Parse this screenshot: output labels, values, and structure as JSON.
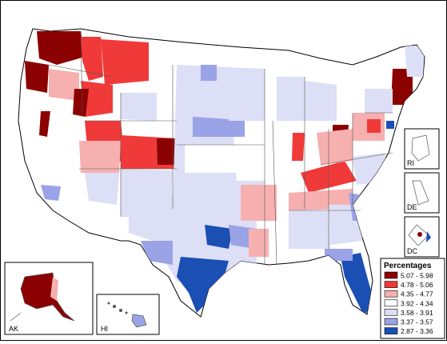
{
  "legend": {
    "title": "Percentages",
    "bins": [
      {
        "label": "5.07 - 5.98",
        "color": "#8b0000"
      },
      {
        "label": "4.78 - 5.06",
        "color": "#f03a3a"
      },
      {
        "label": "4.35 - 4.77",
        "color": "#f6b0b0"
      },
      {
        "label": "3.92 - 4.34",
        "color": "#ffffff"
      },
      {
        "label": "3.58 - 3.91",
        "color": "#dcdff5"
      },
      {
        "label": "3.37 - 3.57",
        "color": "#9aa3e6"
      },
      {
        "label": "2.87 - 3.36",
        "color": "#1b4fb4"
      }
    ]
  },
  "insets": {
    "rhode_island": "RI",
    "delaware": "DE",
    "district_of_columbia": "DC",
    "alaska": "AK",
    "hawaii": "HI"
  }
}
